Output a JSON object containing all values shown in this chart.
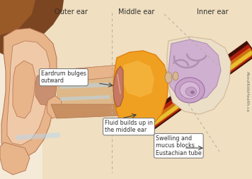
{
  "bg_color": "#f5ead8",
  "title_outer": "Outer ear",
  "title_middle": "Middle ear",
  "title_inner": "Inner ear",
  "label1": "Eardrum bulges\noutward",
  "label2": "Fluid builds up in\nthe middle ear",
  "label3": "Swelling and\nmucus blocks\nEustachian tube",
  "watermark": "AboutKidsHealth.ca",
  "skin_light": "#f0c9a8",
  "skin_medium": "#e8b48a",
  "skin_dark": "#c8906a",
  "skin_outline": "#b07050",
  "brown_dark": "#7a4520",
  "brown_med": "#9a5a28",
  "head_bg": "#f0dfc0",
  "canal_fill": "#d4a878",
  "canal_top": "#c89868",
  "canal_bottom": "#c89060",
  "orange_fluid": "#f0a020",
  "orange_fluid_light": "#f8c050",
  "orange_fluid_dark": "#e08010",
  "inner_ear_bg": "#e8d8c0",
  "inner_ear_lavender": "#d0b0d0",
  "inner_ear_lavender_dark": "#b090b0",
  "cochlea_fill": "#c8a0c8",
  "cochlea_dark": "#9870a0",
  "nerve_yellow": "#e8c030",
  "nerve_orange": "#d07010",
  "nerve_red": "#b02010",
  "nerve_dark": "#401008",
  "eardrum_fill": "#c87860",
  "eardrum_outline": "#a05838",
  "box_bg": "#ffffff",
  "box_border": "#707070",
  "dashed_color": "#b0b0a0",
  "highlight_blue": "#b8d8f0",
  "text_color": "#303030",
  "figsize": [
    3.56,
    2.54
  ],
  "dpi": 100
}
